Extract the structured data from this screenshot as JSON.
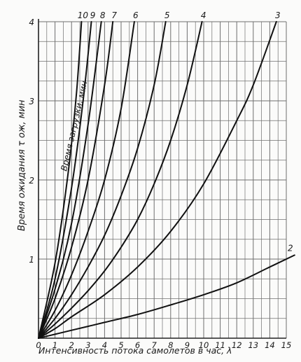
{
  "chart_data": {
    "type": "line",
    "title": "",
    "xlabel": "Интенсивность потока самолетов в час, λ",
    "ylabel": "Время ожидания τ ож, мин",
    "inner_label": "Время загрузки, мин",
    "xlim": [
      0,
      15
    ],
    "ylim": [
      0,
      4
    ],
    "grid": true,
    "x_ticks": [
      "0",
      "1",
      "2",
      "3",
      "4",
      "5",
      "6",
      "7",
      "8",
      "9",
      "10",
      "11",
      "12",
      "13",
      "14",
      "15"
    ],
    "y_ticks": [
      "1",
      "2",
      "3",
      "4"
    ],
    "series": [
      {
        "name": "2",
        "x": [
          0,
          1,
          2,
          4,
          6,
          8,
          10,
          12,
          14,
          15.5
        ],
        "y": [
          0,
          0.05,
          0.1,
          0.2,
          0.3,
          0.42,
          0.55,
          0.7,
          0.9,
          1.05
        ]
      },
      {
        "name": "3",
        "x": [
          0,
          1,
          2,
          4,
          6,
          8,
          10,
          12,
          13,
          14.4
        ],
        "y": [
          0,
          0.12,
          0.27,
          0.55,
          0.9,
          1.35,
          1.95,
          2.75,
          3.2,
          4.0
        ]
      },
      {
        "name": "4",
        "x": [
          0,
          1,
          2,
          3,
          4,
          5,
          6,
          7,
          8,
          9,
          9.9
        ],
        "y": [
          0,
          0.18,
          0.38,
          0.6,
          0.85,
          1.15,
          1.5,
          1.95,
          2.5,
          3.2,
          4.0
        ]
      },
      {
        "name": "5",
        "x": [
          0,
          1,
          2,
          3,
          4,
          5,
          6,
          7,
          7.7
        ],
        "y": [
          0,
          0.25,
          0.55,
          0.9,
          1.3,
          1.8,
          2.4,
          3.2,
          4.0
        ]
      },
      {
        "name": "6",
        "x": [
          0,
          1,
          2,
          3,
          4,
          5,
          5.8
        ],
        "y": [
          0,
          0.35,
          0.8,
          1.35,
          2.0,
          2.9,
          4.0
        ]
      },
      {
        "name": "7",
        "x": [
          0,
          1,
          2,
          3,
          4,
          4.5
        ],
        "y": [
          0,
          0.5,
          1.15,
          2.0,
          3.2,
          4.0
        ]
      },
      {
        "name": "8",
        "x": [
          0,
          1,
          2,
          3,
          3.8
        ],
        "y": [
          0,
          0.62,
          1.45,
          2.7,
          4.0
        ]
      },
      {
        "name": "9",
        "x": [
          0,
          1,
          2,
          2.7,
          3.2
        ],
        "y": [
          0,
          0.75,
          1.9,
          3.0,
          4.0
        ]
      },
      {
        "name": "10",
        "x": [
          0,
          1,
          1.8,
          2.3,
          2.6
        ],
        "y": [
          0,
          0.95,
          2.1,
          3.1,
          4.0
        ]
      }
    ]
  }
}
